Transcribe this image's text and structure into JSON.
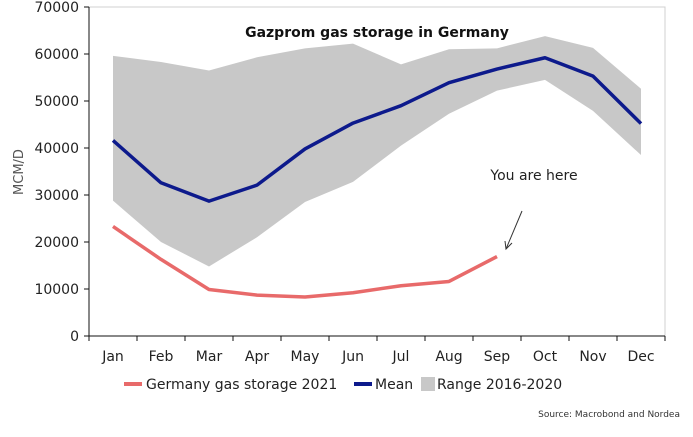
{
  "chart_data": {
    "type": "line",
    "title": "Gazprom gas storage in Germany",
    "xlabel": "",
    "ylabel": "MCM/D",
    "categories": [
      "Jan",
      "Feb",
      "Mar",
      "Apr",
      "May",
      "Jun",
      "Jul",
      "Aug",
      "Sep",
      "Oct",
      "Nov",
      "Dec"
    ],
    "ylim": [
      0,
      70000
    ],
    "yticks": [
      "0",
      "10000",
      "20000",
      "30000",
      "40000",
      "50000",
      "60000",
      "70000"
    ],
    "ytick_values": [
      0,
      10000,
      20000,
      30000,
      40000,
      50000,
      60000,
      70000
    ],
    "grid": false,
    "legend_position": "bottom",
    "range_band": {
      "name": "Range 2016-2020",
      "color": "#c8c8c8",
      "upper": [
        59600,
        58300,
        56500,
        59300,
        61200,
        62200,
        57800,
        61000,
        61200,
        63800,
        61300,
        52600
      ],
      "lower": [
        28800,
        20000,
        14800,
        21000,
        28500,
        32800,
        40500,
        47300,
        52200,
        54500,
        47900,
        38500
      ]
    },
    "series": [
      {
        "name": "Mean",
        "color": "#0d1a8c",
        "values": [
          41600,
          32600,
          28700,
          32100,
          39800,
          45300,
          49000,
          53900,
          56800,
          59200,
          55300,
          45200
        ]
      },
      {
        "name": "Germany gas storage 2021",
        "color": "#e86a6a",
        "values": [
          23300,
          16300,
          9900,
          8700,
          8300,
          9200,
          10700,
          11600,
          16900,
          null,
          null,
          null
        ]
      }
    ],
    "legend": [
      {
        "label": "Germany gas storage 2021",
        "kind": "line",
        "color": "#e86a6a"
      },
      {
        "label": "Mean",
        "kind": "line",
        "color": "#0d1a8c"
      },
      {
        "label": "Range 2016-2020",
        "kind": "band",
        "color": "#c8c8c8"
      }
    ],
    "annotation": {
      "text": "You are here",
      "points_to": {
        "category": "Sep",
        "value": 16900
      }
    },
    "source": "Source: Macrobond and Nordea"
  }
}
